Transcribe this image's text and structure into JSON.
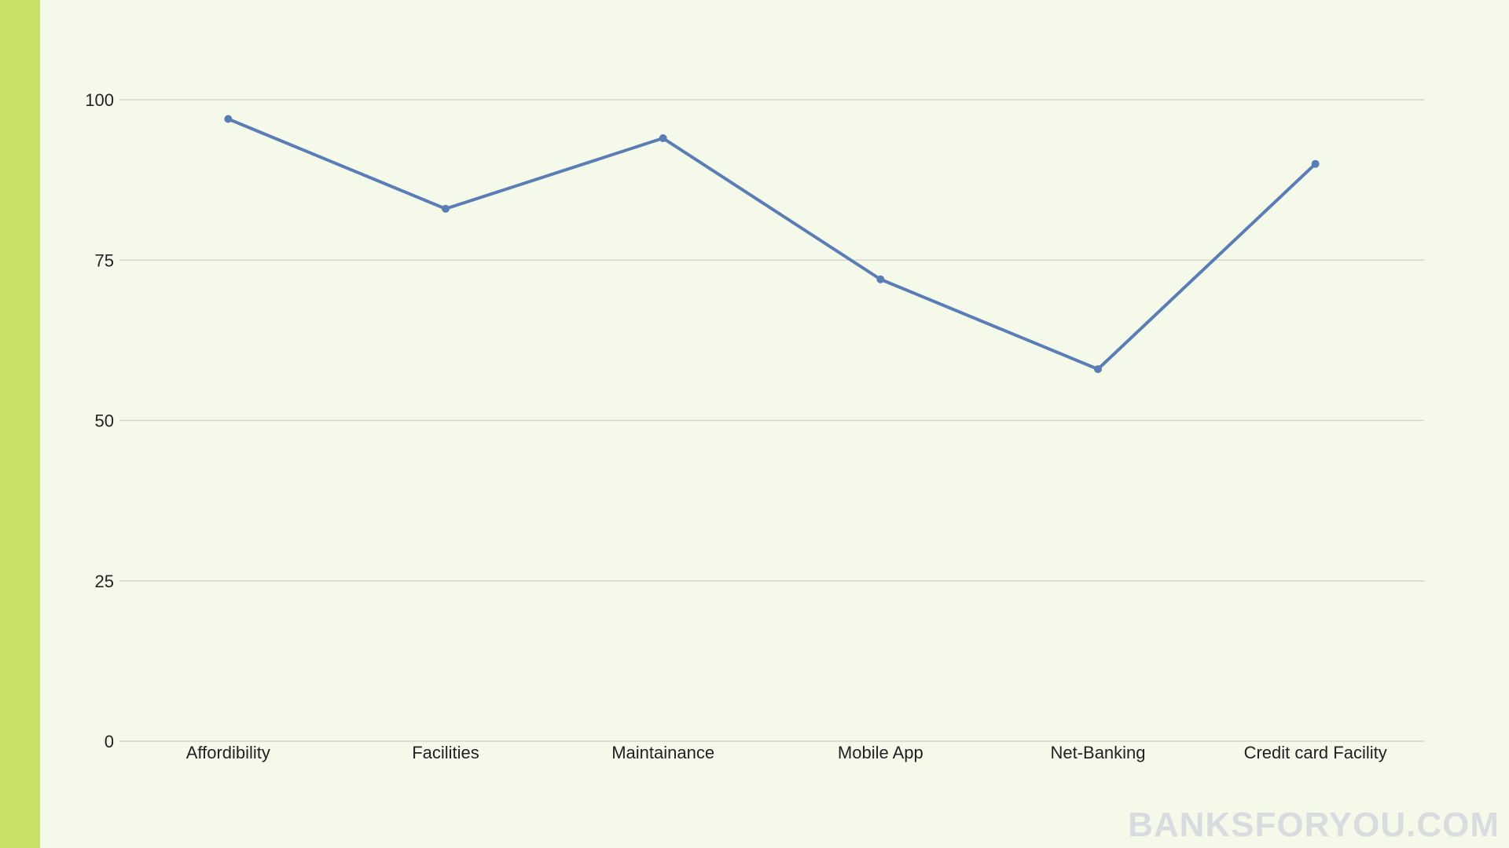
{
  "colors": {
    "background": "#f5f9ea",
    "side_strip": "#c8e266",
    "line": "#5a7db5",
    "grid": "#d3d6cc",
    "watermark": "#d9dcdf"
  },
  "watermark": "BANKSFORYOU.COM",
  "chart_data": {
    "type": "line",
    "categories": [
      "Affordibility",
      "Facilities",
      "Maintainance",
      "Mobile App",
      "Net-Banking",
      "Credit card Facility"
    ],
    "series": [
      {
        "values": [
          97,
          83,
          94,
          72,
          58,
          90
        ]
      }
    ],
    "title": "",
    "xlabel": "",
    "ylabel": "",
    "ylim": [
      0,
      100
    ],
    "yticks": [
      0,
      25,
      50,
      75,
      100
    ],
    "ytick_labels": [
      "0",
      "25",
      "50",
      "75",
      "100"
    ],
    "grid": true,
    "markers": true
  }
}
